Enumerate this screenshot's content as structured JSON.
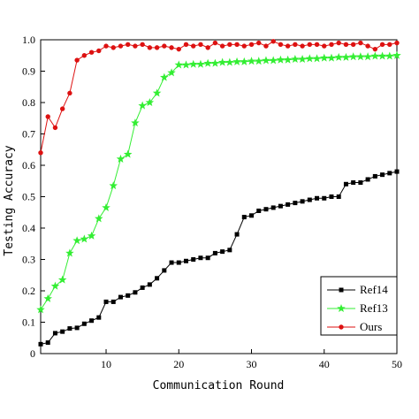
{
  "chart_data": {
    "type": "line",
    "title": "",
    "xlabel": "Communication Round",
    "ylabel": "Testing Accuracy",
    "xlim": [
      1,
      50
    ],
    "ylim": [
      0,
      1.0
    ],
    "xticks": [
      10,
      20,
      30,
      40,
      50
    ],
    "yticks": [
      0,
      0.1,
      0.2,
      0.3,
      0.4,
      0.5,
      0.6,
      0.7,
      0.8,
      0.9,
      1.0
    ],
    "ytick_labels": [
      "0",
      "0.1",
      "0.2",
      "0.3",
      "0.4",
      "0.5",
      "0.6",
      "0.7",
      "0.8",
      "0.9",
      "1.0"
    ],
    "grid": false,
    "legend_position": "bottom-right",
    "x": [
      1,
      2,
      3,
      4,
      5,
      6,
      7,
      8,
      9,
      10,
      11,
      12,
      13,
      14,
      15,
      16,
      17,
      18,
      19,
      20,
      21,
      22,
      23,
      24,
      25,
      26,
      27,
      28,
      29,
      30,
      31,
      32,
      33,
      34,
      35,
      36,
      37,
      38,
      39,
      40,
      41,
      42,
      43,
      44,
      45,
      46,
      47,
      48,
      49,
      50
    ],
    "series": [
      {
        "name": "Ref14",
        "color": "#000000",
        "marker": "square",
        "values": [
          0.03,
          0.035,
          0.065,
          0.07,
          0.08,
          0.082,
          0.095,
          0.105,
          0.115,
          0.165,
          0.165,
          0.18,
          0.185,
          0.195,
          0.21,
          0.22,
          0.24,
          0.265,
          0.29,
          0.29,
          0.295,
          0.3,
          0.305,
          0.305,
          0.32,
          0.325,
          0.33,
          0.38,
          0.435,
          0.44,
          0.455,
          0.46,
          0.465,
          0.47,
          0.475,
          0.48,
          0.485,
          0.49,
          0.495,
          0.495,
          0.5,
          0.5,
          0.54,
          0.545,
          0.545,
          0.555,
          0.565,
          0.57,
          0.575,
          0.58
        ]
      },
      {
        "name": "Ref13",
        "color": "#33ee33",
        "marker": "star",
        "values": [
          0.14,
          0.175,
          0.215,
          0.235,
          0.32,
          0.36,
          0.365,
          0.375,
          0.43,
          0.465,
          0.535,
          0.62,
          0.635,
          0.735,
          0.79,
          0.8,
          0.83,
          0.88,
          0.895,
          0.92,
          0.92,
          0.922,
          0.922,
          0.925,
          0.925,
          0.928,
          0.928,
          0.93,
          0.93,
          0.932,
          0.932,
          0.934,
          0.934,
          0.936,
          0.936,
          0.938,
          0.938,
          0.94,
          0.94,
          0.942,
          0.942,
          0.944,
          0.944,
          0.946,
          0.946,
          0.946,
          0.948,
          0.948,
          0.948,
          0.95
        ]
      },
      {
        "name": "Ours",
        "color": "#dd1111",
        "marker": "circle",
        "values": [
          0.64,
          0.755,
          0.72,
          0.78,
          0.83,
          0.935,
          0.95,
          0.96,
          0.965,
          0.98,
          0.975,
          0.98,
          0.985,
          0.98,
          0.985,
          0.975,
          0.975,
          0.98,
          0.975,
          0.97,
          0.985,
          0.98,
          0.985,
          0.975,
          0.99,
          0.98,
          0.985,
          0.985,
          0.98,
          0.985,
          0.99,
          0.98,
          0.995,
          0.985,
          0.98,
          0.985,
          0.98,
          0.985,
          0.985,
          0.98,
          0.985,
          0.99,
          0.985,
          0.985,
          0.99,
          0.98,
          0.97,
          0.985,
          0.985,
          0.99
        ]
      }
    ]
  }
}
